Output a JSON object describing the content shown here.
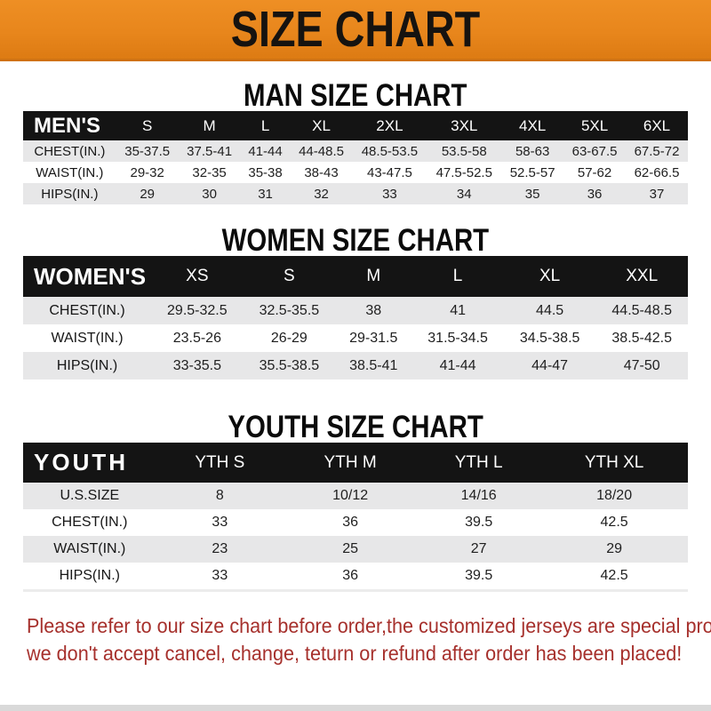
{
  "banner": {
    "title": "SIZE CHART",
    "bg_color": "#E8861C",
    "text_color": "#161310"
  },
  "colors": {
    "header_bar": "#141414",
    "row_shade": "#E7E7E8",
    "note_red": "#A6302C"
  },
  "sections": [
    {
      "heading": "MAN SIZE CHART",
      "table": {
        "label": "MEN'S",
        "columns": [
          "S",
          "M",
          "L",
          "XL",
          "2XL",
          "3XL",
          "4XL",
          "5XL",
          "6XL"
        ],
        "rows": [
          {
            "label": "CHEST(IN.)",
            "values": [
              "35-37.5",
              "37.5-41",
              "41-44",
              "44-48.5",
              "48.5-53.5",
              "53.5-58",
              "58-63",
              "63-67.5",
              "67.5-72"
            ]
          },
          {
            "label": "WAIST(IN.)",
            "values": [
              "29-32",
              "32-35",
              "35-38",
              "38-43",
              "43-47.5",
              "47.5-52.5",
              "52.5-57",
              "57-62",
              "62-66.5"
            ]
          },
          {
            "label": "HIPS(IN.)",
            "values": [
              "29",
              "30",
              "31",
              "32",
              "33",
              "34",
              "35",
              "36",
              "37"
            ]
          }
        ]
      }
    },
    {
      "heading": "WOMEN SIZE CHART",
      "table": {
        "label": "WOMEN'S",
        "columns": [
          "XS",
          "S",
          "M",
          "L",
          "XL",
          "XXL"
        ],
        "rows": [
          {
            "label": "CHEST(IN.)",
            "values": [
              "29.5-32.5",
              "32.5-35.5",
              "38",
              "41",
              "44.5",
              "44.5-48.5"
            ]
          },
          {
            "label": "WAIST(IN.)",
            "values": [
              "23.5-26",
              "26-29",
              "29-31.5",
              "31.5-34.5",
              "34.5-38.5",
              "38.5-42.5"
            ]
          },
          {
            "label": "HIPS(IN.)",
            "values": [
              "33-35.5",
              "35.5-38.5",
              "38.5-41",
              "41-44",
              "44-47",
              "47-50"
            ]
          }
        ]
      }
    },
    {
      "heading": "YOUTH SIZE CHART",
      "table": {
        "label": "YOUTH",
        "columns": [
          "YTH S",
          "YTH M",
          "YTH L",
          "YTH XL"
        ],
        "rows": [
          {
            "label": "U.S.SIZE",
            "values": [
              "8",
              "10/12",
              "14/16",
              "18/20"
            ]
          },
          {
            "label": "CHEST(IN.)",
            "values": [
              "33",
              "36",
              "39.5",
              "42.5"
            ]
          },
          {
            "label": "WAIST(IN.)",
            "values": [
              "23",
              "25",
              "27",
              "29"
            ]
          },
          {
            "label": "HIPS(IN.)",
            "values": [
              "33",
              "36",
              "39.5",
              "42.5"
            ]
          }
        ]
      }
    }
  ],
  "footer": {
    "line1": "Please refer to our size chart before order,the customized jerseys are special products,",
    "line2": "we don't accept cancel, change, teturn or refund after order has been placed!"
  }
}
